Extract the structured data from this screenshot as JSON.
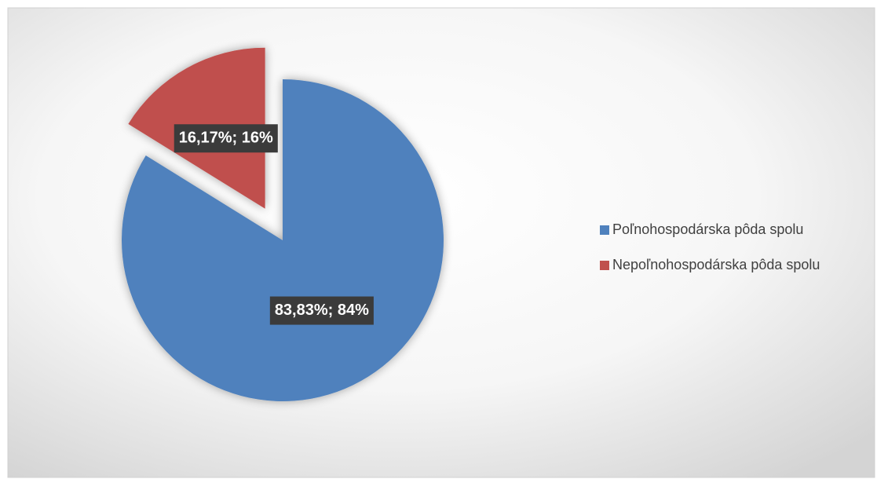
{
  "chart_data": {
    "type": "pie",
    "categories": [
      "Poľnohospodárska pôda spolu",
      "Nepoľnohospodárska pôda spolu"
    ],
    "values": [
      83.83,
      16.17
    ],
    "value_labels": [
      "83,83%; 84%",
      "16,17%; 16%"
    ],
    "colors": [
      "#4f81bd",
      "#c0504d"
    ],
    "legend": "right"
  }
}
